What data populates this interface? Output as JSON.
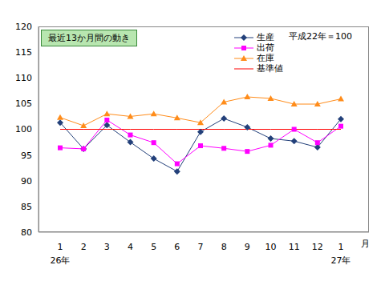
{
  "chart_data": {
    "type": "line",
    "title": "最近13か月間の動き",
    "subtitle": "平成22年＝100",
    "x_label": "月",
    "categories": [
      "1\n26年",
      "2",
      "3",
      "4",
      "5",
      "6",
      "7",
      "8",
      "9",
      "10",
      "11",
      "12",
      "1\n27年"
    ],
    "ylim": [
      80,
      120
    ],
    "yticks": [
      80,
      85,
      90,
      95,
      100,
      105,
      110,
      115,
      120
    ],
    "grid": false,
    "legend": "upper right",
    "series": [
      {
        "name": "生産",
        "color": "#23407a",
        "marker": "diamond",
        "line_style": "solid",
        "values": [
          101.3,
          96.2,
          100.8,
          97.5,
          94.3,
          91.8,
          99.5,
          102.1,
          100.4,
          98.2,
          97.7,
          96.5,
          102.0
        ]
      },
      {
        "name": "出荷",
        "color": "#ff00ff",
        "marker": "square",
        "line_style": "solid",
        "values": [
          96.4,
          96.2,
          101.8,
          98.9,
          97.4,
          93.3,
          96.8,
          96.3,
          95.7,
          96.9,
          100.0,
          97.4,
          100.6
        ]
      },
      {
        "name": "在庫",
        "color": "#ff8c1a",
        "marker": "triangle",
        "line_style": "solid",
        "values": [
          102.3,
          100.7,
          103.0,
          102.5,
          103.0,
          102.2,
          101.3,
          105.3,
          106.3,
          106.0,
          104.9,
          104.9,
          105.9
        ]
      },
      {
        "name": "基準値",
        "color": "#ff0000",
        "marker": "none",
        "line_style": "solid",
        "values": [
          100,
          100,
          100,
          100,
          100,
          100,
          100,
          100,
          100,
          100,
          100,
          100,
          100
        ]
      }
    ]
  }
}
